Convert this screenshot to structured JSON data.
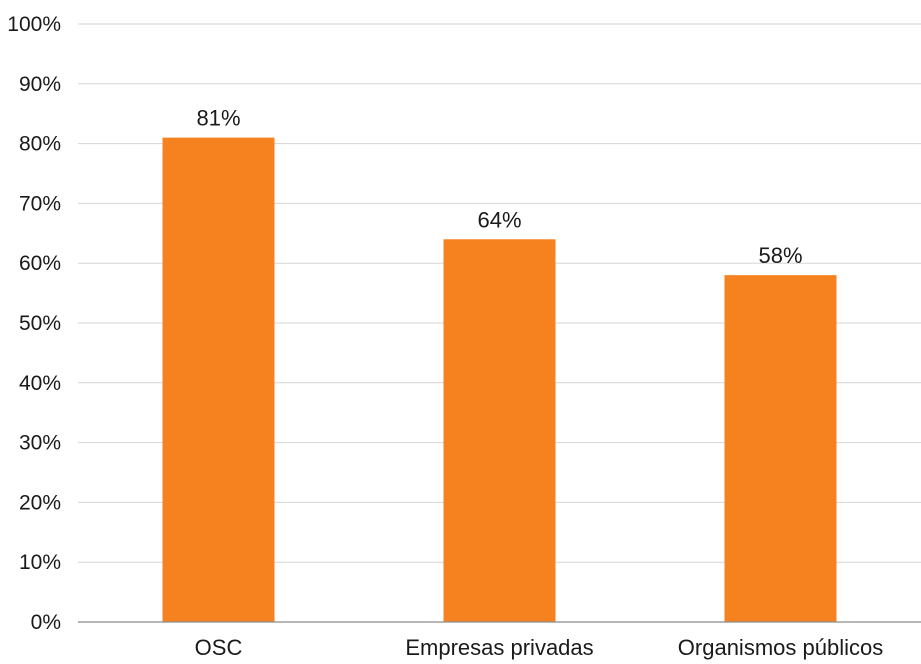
{
  "chart_data": {
    "type": "bar",
    "categories": [
      "OSC",
      "Empresas privadas",
      "Organismos públicos"
    ],
    "values": [
      81,
      64,
      58
    ],
    "data_labels": [
      "81%",
      "64%",
      "58%"
    ],
    "ylim": [
      0,
      100
    ],
    "yticks": [
      0,
      10,
      20,
      30,
      40,
      50,
      60,
      70,
      80,
      90,
      100
    ],
    "ytick_labels": [
      "0%",
      "10%",
      "20%",
      "30%",
      "40%",
      "50%",
      "60%",
      "70%",
      "80%",
      "90%",
      "100%"
    ],
    "grid": true,
    "bar_color": "#f5821f",
    "title": "",
    "xlabel": "",
    "ylabel": ""
  }
}
